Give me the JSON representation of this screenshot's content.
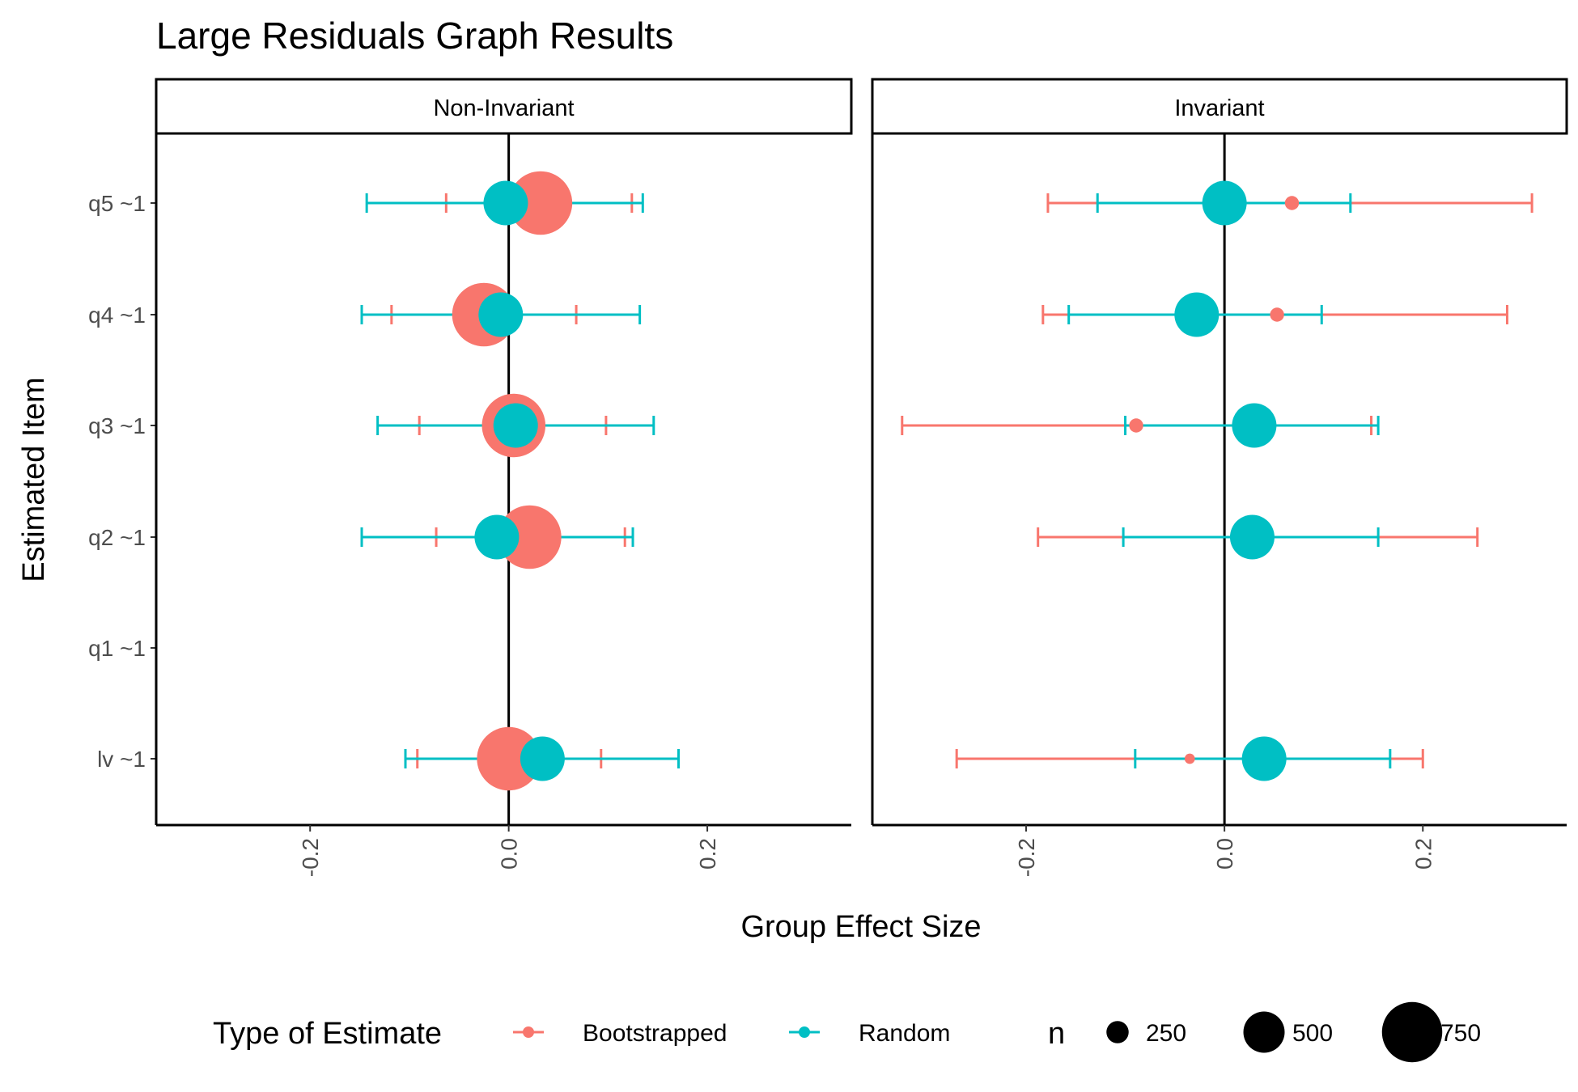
{
  "chart_data": {
    "type": "scatter",
    "title": "Large Residuals Graph Results",
    "xlabel": "Group Effect Size",
    "ylabel": "Estimated Item",
    "xlim": [
      -0.355,
      0.345
    ],
    "x_ticks": [
      -0.2,
      0.0,
      0.2
    ],
    "x_tick_labels": [
      "-0.2",
      "0.0",
      "0.2"
    ],
    "categories": [
      "q5 ~1",
      "q4 ~1",
      "q3 ~1",
      "q2 ~1",
      "q1 ~1",
      "lv ~1"
    ],
    "reference_line_x": 0,
    "grid": false,
    "legend_position": "bottom",
    "colors": {
      "Bootstrapped": "#F8766D",
      "Random": "#00BFC4"
    },
    "legend": {
      "color_title": "Type of Estimate",
      "color_entries": [
        "Bootstrapped",
        "Random"
      ],
      "size_title": "n",
      "size_entries": [
        {
          "label": "250",
          "value": 250
        },
        {
          "label": "500",
          "value": 500
        },
        {
          "label": "750",
          "value": 750
        }
      ]
    },
    "panels": [
      {
        "name": "Non-Invariant",
        "series": [
          {
            "name": "Bootstrapped",
            "points": [
              {
                "item": "q5 ~1",
                "estimate": 0.032,
                "lower": -0.063,
                "upper": 0.124,
                "n": 750
              },
              {
                "item": "q4 ~1",
                "estimate": -0.025,
                "lower": -0.118,
                "upper": 0.068,
                "n": 750
              },
              {
                "item": "q3 ~1",
                "estimate": 0.005,
                "lower": -0.09,
                "upper": 0.098,
                "n": 750
              },
              {
                "item": "q2 ~1",
                "estimate": 0.021,
                "lower": -0.073,
                "upper": 0.117,
                "n": 750
              },
              {
                "item": "lv ~1",
                "estimate": 0.0,
                "lower": -0.092,
                "upper": 0.093,
                "n": 750
              }
            ]
          },
          {
            "name": "Random",
            "points": [
              {
                "item": "q5 ~1",
                "estimate": -0.003,
                "lower": -0.143,
                "upper": 0.135,
                "n": 500
              },
              {
                "item": "q4 ~1",
                "estimate": -0.008,
                "lower": -0.148,
                "upper": 0.132,
                "n": 500
              },
              {
                "item": "q3 ~1",
                "estimate": 0.007,
                "lower": -0.132,
                "upper": 0.146,
                "n": 500
              },
              {
                "item": "q2 ~1",
                "estimate": -0.012,
                "lower": -0.148,
                "upper": 0.125,
                "n": 500
              },
              {
                "item": "lv ~1",
                "estimate": 0.034,
                "lower": -0.104,
                "upper": 0.171,
                "n": 500
              }
            ]
          }
        ]
      },
      {
        "name": "Invariant",
        "series": [
          {
            "name": "Bootstrapped",
            "points": [
              {
                "item": "q5 ~1",
                "estimate": 0.068,
                "lower": -0.178,
                "upper": 0.31,
                "n": 100
              },
              {
                "item": "q4 ~1",
                "estimate": 0.053,
                "lower": -0.183,
                "upper": 0.285,
                "n": 100
              },
              {
                "item": "q3 ~1",
                "estimate": -0.089,
                "lower": -0.325,
                "upper": 0.148,
                "n": 100
              },
              {
                "item": "q2 ~1",
                "estimate": 0.025,
                "lower": -0.188,
                "upper": 0.255,
                "n": 80
              },
              {
                "item": "lv ~1",
                "estimate": -0.035,
                "lower": -0.27,
                "upper": 0.2,
                "n": 50
              }
            ]
          },
          {
            "name": "Random",
            "points": [
              {
                "item": "q5 ~1",
                "estimate": 0.0,
                "lower": -0.128,
                "upper": 0.127,
                "n": 500
              },
              {
                "item": "q4 ~1",
                "estimate": -0.028,
                "lower": -0.157,
                "upper": 0.098,
                "n": 500
              },
              {
                "item": "q3 ~1",
                "estimate": 0.03,
                "lower": -0.1,
                "upper": 0.155,
                "n": 500
              },
              {
                "item": "q2 ~1",
                "estimate": 0.028,
                "lower": -0.102,
                "upper": 0.155,
                "n": 500
              },
              {
                "item": "lv ~1",
                "estimate": 0.04,
                "lower": -0.09,
                "upper": 0.167,
                "n": 500
              }
            ]
          }
        ]
      }
    ]
  }
}
